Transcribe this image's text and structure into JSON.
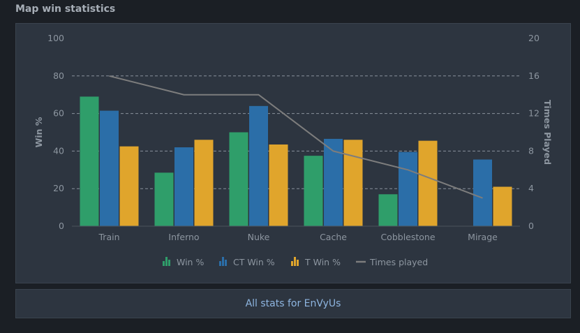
{
  "section_title": "Map win statistics",
  "footer_link": "All stats for EnVyUs",
  "colors": {
    "win": "#2f9e6a",
    "ct": "#2b6ea8",
    "t": "#e0a52c",
    "times": "#7d7d7d"
  },
  "chart_data": {
    "type": "bar",
    "categories": [
      "Train",
      "Inferno",
      "Nuke",
      "Cache",
      "Cobblestone",
      "Mirage"
    ],
    "series": [
      {
        "name": "Win %",
        "kind": "bar",
        "axis": "left",
        "values": [
          69,
          28.5,
          50,
          37.5,
          17,
          0
        ]
      },
      {
        "name": "CT Win %",
        "kind": "bar",
        "axis": "left",
        "values": [
          61.5,
          42,
          64,
          46.5,
          39.5,
          35.5
        ]
      },
      {
        "name": "T Win %",
        "kind": "bar",
        "axis": "left",
        "values": [
          42.5,
          46,
          43.5,
          46,
          45.5,
          21
        ]
      },
      {
        "name": "Times played",
        "kind": "line",
        "axis": "right",
        "values": [
          16,
          14,
          14,
          8,
          6,
          3
        ]
      }
    ],
    "ylabel": "Win %",
    "y2label": "Times Played",
    "ylim": [
      0,
      100
    ],
    "y2lim": [
      0,
      20
    ],
    "yticks": [
      0,
      20,
      40,
      60,
      80,
      100
    ],
    "y2ticks": [
      0,
      4,
      8,
      12,
      16,
      20
    ],
    "legend_position": "bottom",
    "grid": true
  }
}
